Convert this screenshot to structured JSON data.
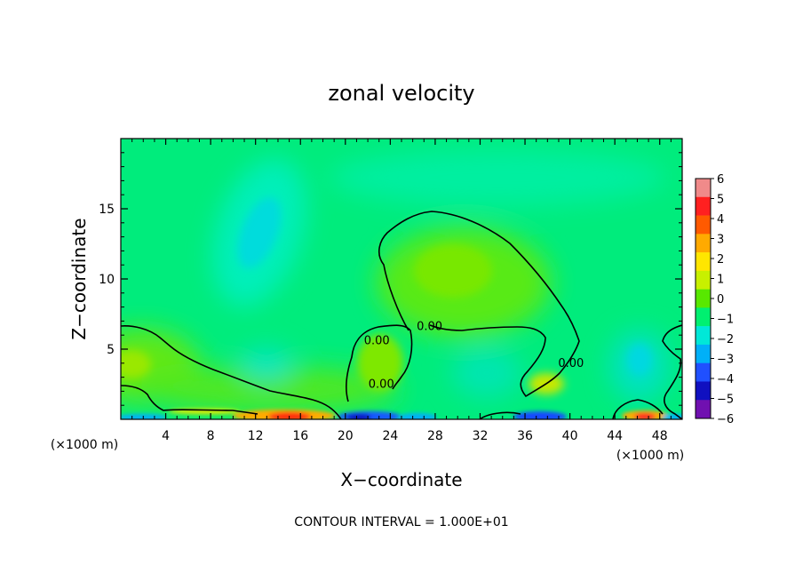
{
  "chart_data": {
    "type": "heatmap",
    "title": "zonal velocity",
    "xlabel": "X−coordinate",
    "ylabel": "Z−coordinate",
    "x_unit": "(×1000 m)",
    "y_unit": "(×1000 m)",
    "footer": "CONTOUR INTERVAL = 1.000E+01",
    "xlim": [
      0,
      50
    ],
    "ylim": [
      0,
      20
    ],
    "x_ticks": [
      4,
      8,
      12,
      16,
      20,
      24,
      28,
      32,
      36,
      40,
      44,
      48
    ],
    "x_tick_labels": [
      "4",
      "8",
      "12",
      "16",
      "20",
      "24",
      "28",
      "32",
      "36",
      "40",
      "44",
      "48"
    ],
    "y_ticks": [
      5,
      10,
      15
    ],
    "y_tick_labels": [
      "5",
      "10",
      "15"
    ],
    "colorbar": {
      "levels": [
        6,
        5,
        4,
        3,
        2,
        1,
        0,
        -1,
        -2,
        -3,
        -4,
        -5,
        -6
      ],
      "labels": [
        "6",
        "5",
        "4",
        "3",
        "2",
        "1",
        "0",
        "−1",
        "−2",
        "−3",
        "−4",
        "−5",
        "−6"
      ],
      "colors": [
        "#f08a8a",
        "#ff2020",
        "#ff5a00",
        "#ffaa00",
        "#ffe600",
        "#c8f000",
        "#58e800",
        "#00f070",
        "#00e8d8",
        "#00b0f8",
        "#2050ff",
        "#1010c0",
        "#7010b0"
      ]
    },
    "contours": [
      {
        "value": 0,
        "label": "0.00",
        "label_at": [
          22.8,
          5.6
        ]
      },
      {
        "value": 0,
        "label": "0.00",
        "label_at": [
          27.5,
          6.6
        ]
      },
      {
        "value": 0,
        "label": "0.00",
        "label_at": [
          23.2,
          2.5
        ]
      },
      {
        "value": 0,
        "label": "0.00",
        "label_at": [
          40.1,
          4.0
        ]
      }
    ],
    "features": [
      {
        "kind": "max",
        "x": 29.5,
        "z": 11.0,
        "value": 0.5
      },
      {
        "kind": "min",
        "x": 12.5,
        "z": 13.5,
        "value": -2.2
      },
      {
        "kind": "max",
        "x": 1.0,
        "z": 4.0,
        "value": 0.6
      },
      {
        "kind": "max",
        "x": 23.5,
        "z": 4.0,
        "value": 0.5
      },
      {
        "kind": "max",
        "x": 37.5,
        "z": 2.5,
        "value": 1.2
      },
      {
        "kind": "min",
        "x": 45.5,
        "z": 4.5,
        "value": -1.5
      },
      {
        "kind": "max",
        "x": 14.5,
        "z": 0.3,
        "value": 5.0
      },
      {
        "kind": "min",
        "x": 22.0,
        "z": 0.3,
        "value": -4.5
      },
      {
        "kind": "max",
        "x": 45.5,
        "z": 0.3,
        "value": 5.0
      },
      {
        "kind": "min",
        "x": 37.5,
        "z": 0.3,
        "value": -4.0
      }
    ]
  }
}
